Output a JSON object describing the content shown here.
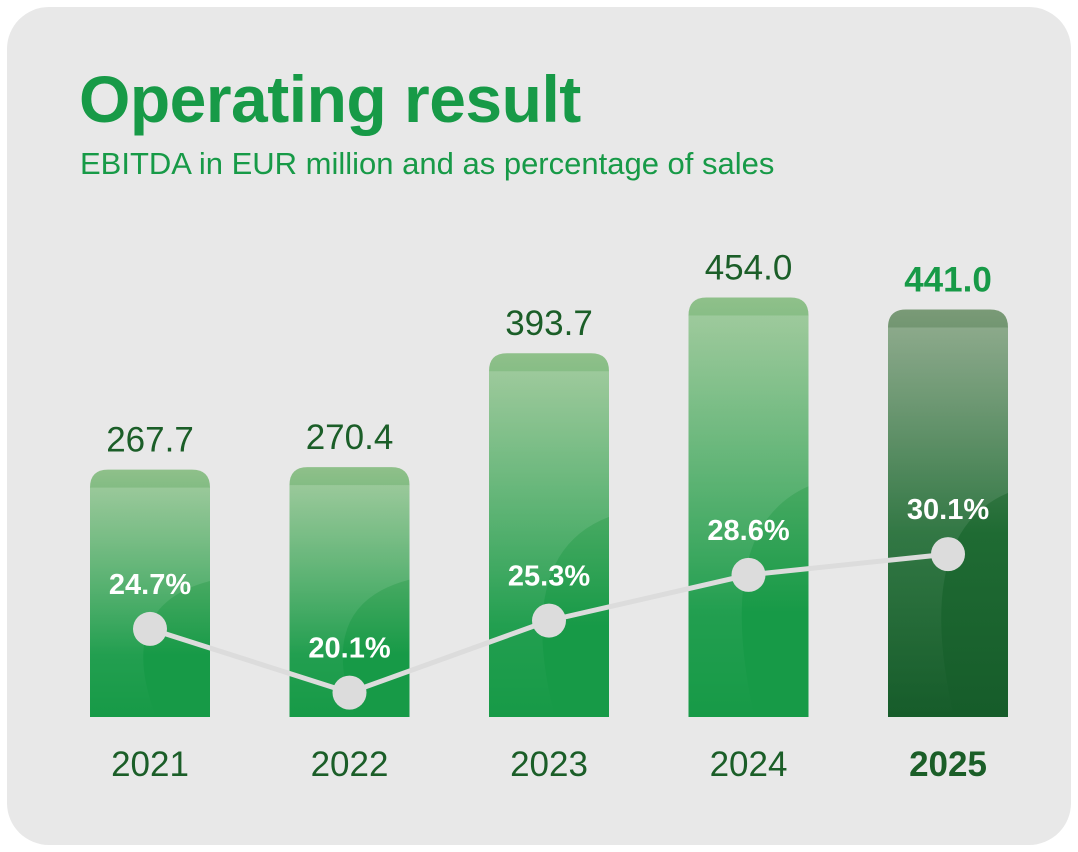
{
  "title": "Operating result",
  "subtitle": "EBITDA in EUR million and as percentage of sales",
  "colors": {
    "title": "#179a47",
    "bar_top": "#8fc08a",
    "bar_bottom": "#179a47",
    "bar_highlight_top": "#7a9a77",
    "bar_highlight_bottom": "#165c2a",
    "line": "#dcdcdc",
    "text_dark": "#1b5e28",
    "background": "#e8e8e8"
  },
  "chart_data": {
    "type": "bar",
    "title": "Operating result",
    "subtitle": "EBITDA in EUR million and as percentage of sales",
    "categories": [
      "2021",
      "2022",
      "2023",
      "2024",
      "2025"
    ],
    "highlight_category": "2025",
    "series": [
      {
        "type": "bar",
        "values": [
          267.7,
          270.4,
          393.7,
          454.0,
          441.0
        ],
        "labels": [
          "267.7",
          "270.4",
          "393.7",
          "454.0",
          "441.0"
        ]
      },
      {
        "type": "line",
        "values": [
          24.7,
          20.1,
          25.3,
          28.6,
          30.1
        ],
        "labels": [
          "24.7%",
          "20.1%",
          "25.3%",
          "28.6%",
          "30.1%"
        ]
      }
    ],
    "xlabel": "",
    "ylabel": "",
    "grid": false,
    "legend": "none"
  }
}
